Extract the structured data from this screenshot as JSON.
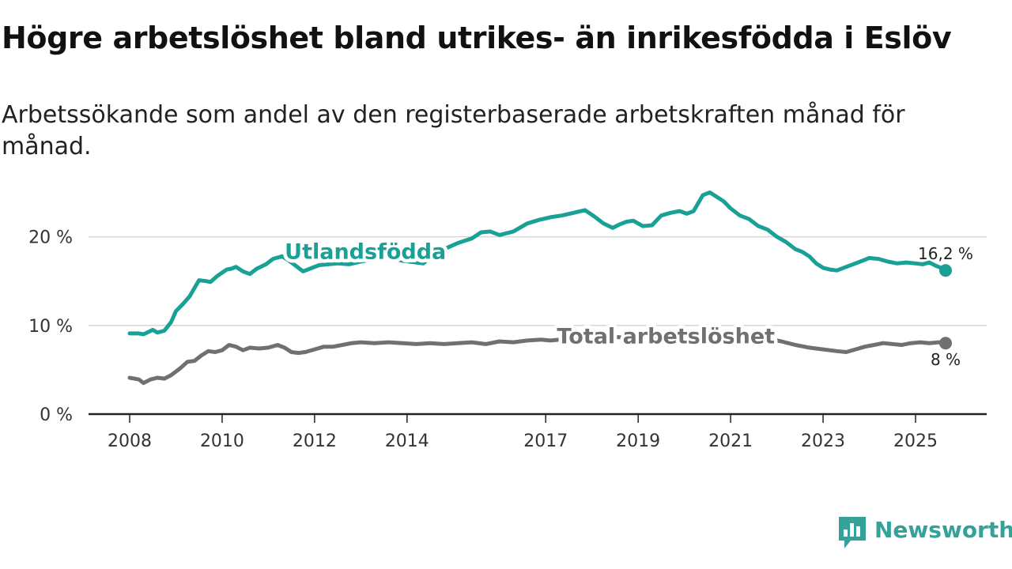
{
  "title": "Högre arbetslöshet bland utrikes- än inrikesfödda i Eslöv",
  "subtitle": "Arbetssökande som andel av den registerbaserade arbetskraften månad för månad.",
  "brand": {
    "name": "Newsworthy",
    "color": "#35a29a"
  },
  "chart_data": {
    "type": "line",
    "title": "Högre arbetslöshet bland utrikes- än inrikesfödda i Eslöv",
    "xlabel": "",
    "ylabel": "",
    "xlim": [
      2008,
      2025.65
    ],
    "ylim": [
      0,
      25
    ],
    "xticks": [
      2008,
      2010,
      2012,
      2014,
      2017,
      2019,
      2021,
      2023,
      2025
    ],
    "xtick_labels": [
      "2008",
      "2010",
      "2012",
      "2014",
      "2017",
      "2019",
      "2021",
      "2023",
      "2025"
    ],
    "yticks": [
      0,
      10,
      20
    ],
    "ytick_labels": [
      "0 %",
      "10 %",
      "20 %"
    ],
    "grid": true,
    "series": [
      {
        "name": "Utlandsfödda",
        "color": "#1aa196",
        "end_label": "16,2 %",
        "x": [
          2008.0,
          2008.2,
          2008.3,
          2008.5,
          2008.6,
          2008.75,
          2008.9,
          2009.0,
          2009.15,
          2009.3,
          2009.5,
          2009.65,
          2009.75,
          2009.9,
          2010.1,
          2010.2,
          2010.3,
          2010.45,
          2010.6,
          2010.75,
          2010.95,
          2011.1,
          2011.3,
          2011.5,
          2011.6,
          2011.75,
          2011.9,
          2012.1,
          2012.3,
          2012.5,
          2012.75,
          2013.0,
          2013.3,
          2013.6,
          2013.9,
          2014.2,
          2014.35,
          2014.55,
          2014.8,
          2015.1,
          2015.4,
          2015.6,
          2015.8,
          2016.0,
          2016.3,
          2016.6,
          2016.85,
          2017.1,
          2017.35,
          2017.6,
          2017.85,
          2018.05,
          2018.25,
          2018.45,
          2018.6,
          2018.75,
          2018.9,
          2019.1,
          2019.3,
          2019.5,
          2019.7,
          2019.9,
          2020.05,
          2020.2,
          2020.4,
          2020.55,
          2020.7,
          2020.85,
          2021.0,
          2021.2,
          2021.4,
          2021.6,
          2021.8,
          2022.0,
          2022.2,
          2022.4,
          2022.55,
          2022.7,
          2022.85,
          2023.0,
          2023.15,
          2023.3,
          2023.5,
          2023.7,
          2023.85,
          2024.0,
          2024.2,
          2024.4,
          2024.6,
          2024.8,
          2025.0,
          2025.15,
          2025.3,
          2025.45,
          2025.55,
          2025.65
        ],
        "values": [
          9.1,
          9.1,
          9.0,
          9.5,
          9.2,
          9.4,
          10.4,
          11.6,
          12.4,
          13.3,
          15.1,
          15.0,
          14.9,
          15.6,
          16.3,
          16.4,
          16.6,
          16.1,
          15.8,
          16.4,
          16.9,
          17.5,
          17.8,
          17.1,
          16.7,
          16.1,
          16.4,
          16.8,
          16.9,
          17.0,
          16.9,
          17.2,
          17.5,
          17.6,
          17.3,
          17.1,
          17.0,
          17.9,
          18.6,
          19.3,
          19.8,
          20.5,
          20.6,
          20.2,
          20.6,
          21.5,
          21.9,
          22.2,
          22.4,
          22.7,
          23.0,
          22.3,
          21.5,
          21.0,
          21.4,
          21.7,
          21.8,
          21.2,
          21.3,
          22.4,
          22.7,
          22.9,
          22.6,
          22.9,
          24.7,
          25.0,
          24.5,
          24.0,
          23.2,
          22.4,
          22.0,
          21.2,
          20.8,
          20.0,
          19.4,
          18.6,
          18.3,
          17.8,
          17.0,
          16.5,
          16.3,
          16.2,
          16.6,
          17.0,
          17.3,
          17.6,
          17.5,
          17.2,
          17.0,
          17.1,
          17.0,
          16.9,
          17.1,
          16.7,
          16.5,
          16.2
        ]
      },
      {
        "name": "Total arbetslöshet",
        "color": "#707070",
        "end_label": "8 %",
        "x": [
          2008.0,
          2008.2,
          2008.3,
          2008.45,
          2008.6,
          2008.75,
          2008.9,
          2009.1,
          2009.25,
          2009.4,
          2009.55,
          2009.7,
          2009.85,
          2010.0,
          2010.15,
          2010.3,
          2010.45,
          2010.6,
          2010.8,
          2011.0,
          2011.2,
          2011.35,
          2011.5,
          2011.65,
          2011.8,
          2012.0,
          2012.2,
          2012.4,
          2012.6,
          2012.8,
          2013.0,
          2013.3,
          2013.6,
          2013.9,
          2014.2,
          2014.5,
          2014.8,
          2015.1,
          2015.4,
          2015.7,
          2016.0,
          2016.3,
          2016.6,
          2016.9,
          2017.1,
          2017.3,
          2017.6,
          2017.9,
          2018.2,
          2018.5,
          2018.8,
          2019.1,
          2019.4,
          2019.7,
          2020.0,
          2020.3,
          2020.6,
          2020.9,
          2021.2,
          2021.5,
          2021.8,
          2022.1,
          2022.4,
          2022.7,
          2023.0,
          2023.3,
          2023.5,
          2023.7,
          2023.9,
          2024.1,
          2024.3,
          2024.5,
          2024.7,
          2024.9,
          2025.1,
          2025.3,
          2025.5,
          2025.65
        ],
        "values": [
          4.1,
          3.9,
          3.5,
          3.9,
          4.1,
          4.0,
          4.4,
          5.2,
          5.9,
          6.0,
          6.6,
          7.1,
          7.0,
          7.2,
          7.8,
          7.6,
          7.2,
          7.5,
          7.4,
          7.5,
          7.8,
          7.5,
          7.0,
          6.9,
          7.0,
          7.3,
          7.6,
          7.6,
          7.8,
          8.0,
          8.1,
          8.0,
          8.1,
          8.0,
          7.9,
          8.0,
          7.9,
          8.0,
          8.1,
          7.9,
          8.2,
          8.1,
          8.3,
          8.4,
          8.3,
          8.4,
          8.5,
          8.6,
          8.5,
          8.7,
          8.6,
          8.5,
          8.6,
          8.7,
          8.9,
          9.0,
          9.1,
          8.8,
          8.6,
          8.6,
          8.5,
          8.2,
          7.8,
          7.5,
          7.3,
          7.1,
          7.0,
          7.3,
          7.6,
          7.8,
          8.0,
          7.9,
          7.8,
          8.0,
          8.1,
          8.0,
          8.1,
          8.0
        ]
      }
    ],
    "annotations": [
      {
        "text": "Utlandsfödda",
        "series": 0,
        "x": 2013.1,
        "y": 18.3
      },
      {
        "text": "Total arbetslöshet",
        "series": 1,
        "x": 2019.6,
        "y": 8.8
      }
    ]
  }
}
